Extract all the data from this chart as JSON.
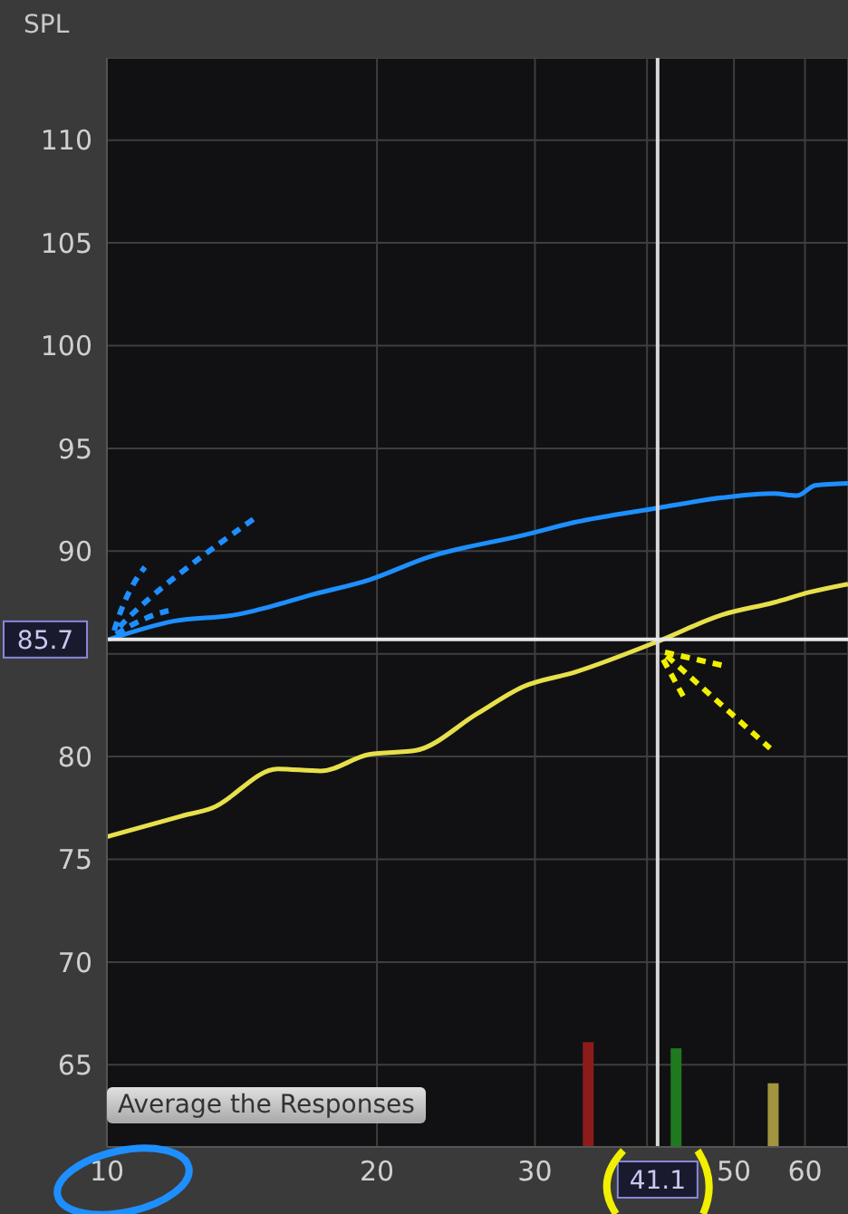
{
  "chart_data": {
    "type": "line",
    "ylabel": "SPL",
    "log": "x",
    "grid": true,
    "xlim": [
      10,
      67
    ],
    "ylim": [
      61,
      114
    ],
    "xticks": [
      10,
      20,
      30,
      {
        "value": 40,
        "label": null
      },
      50,
      60
    ],
    "yticks": [
      65,
      70,
      75,
      80,
      {
        "value": 85,
        "label": null
      },
      90,
      95,
      100,
      105,
      110
    ],
    "series": [
      {
        "color": "#1e8fff",
        "x": [
          10.05,
          11.9,
          13.9,
          14.6,
          17.0,
          19.6,
          22.8,
          29.3,
          33.2,
          41.1,
          48.5,
          55.4,
          58.8,
          61.6,
          67
        ],
        "values": [
          85.7,
          86.6,
          86.9,
          87.1,
          87.9,
          88.6,
          89.7,
          90.8,
          91.4,
          92.1,
          92.6,
          92.8,
          92.7,
          93.2,
          93.3
        ]
      },
      {
        "color": "#e8e04a",
        "x": [
          10,
          12.1,
          13.1,
          15.5,
          17.3,
          19.6,
          22.1,
          25.9,
          29.1,
          33.2,
          41.1,
          48.5,
          55.4,
          60.7,
          67
        ],
        "values": [
          76.1,
          77.1,
          77.5,
          79.4,
          79.3,
          80.1,
          80.3,
          82.1,
          83.4,
          84.1,
          85.6,
          86.9,
          87.5,
          88.0,
          88.4
        ]
      },
      {
        "type": "bar",
        "x": [
          34.4,
          43.1,
          55.3
        ],
        "values": [
          66.1,
          65.8,
          64.1
        ],
        "colors": [
          "#8e1b1b",
          "#1f7a1f",
          "#a39540"
        ]
      }
    ],
    "ref_lines": [
      {
        "axis": "x",
        "value": 41.1,
        "label": "41.1",
        "color": "#d8d8d8"
      },
      {
        "axis": "y",
        "value": 85.7,
        "label": "85.7",
        "color": "#e8e8e8"
      }
    ],
    "annotations": [
      "Average the Responses"
    ]
  }
}
